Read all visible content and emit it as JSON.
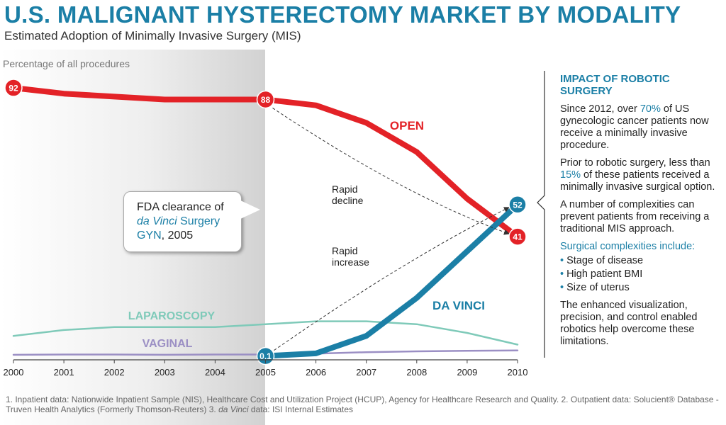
{
  "title": "U.S. MALIGNANT HYSTERECTOMY MARKET BY MODALITY",
  "subtitle": "Estimated Adoption of Minimally Invasive Surgery (MIS)",
  "chart_data": {
    "type": "line",
    "title": "U.S. MALIGNANT HYSTERECTOMY MARKET BY MODALITY",
    "subtitle": "Estimated Adoption of Minimally Invasive Surgery (MIS)",
    "ylabel": "Percentage of all procedures",
    "xlabel": "",
    "x": [
      "2000",
      "2001",
      "2002",
      "2003",
      "2004",
      "2005",
      "2006",
      "2007",
      "2008",
      "2009",
      "2010"
    ],
    "ylim": [
      0,
      95
    ],
    "grid": false,
    "series": [
      {
        "name": "OPEN",
        "color": "#e32227",
        "values": [
          92,
          90,
          89,
          88,
          88,
          88,
          86,
          80,
          70,
          54,
          41
        ]
      },
      {
        "name": "DA VINCI",
        "color": "#1b7fa6",
        "values": [
          null,
          null,
          null,
          null,
          null,
          0.1,
          1,
          7,
          20,
          36,
          52
        ]
      },
      {
        "name": "LAPAROSCOPY",
        "color": "#7fcab9",
        "values": [
          7,
          9,
          10,
          10,
          10,
          11,
          12,
          12,
          11,
          8,
          4
        ]
      },
      {
        "name": "VAGINAL",
        "color": "#9b8fc4",
        "values": [
          0.5,
          0.6,
          0.6,
          0.5,
          0.6,
          0.6,
          0.9,
          1.4,
          1.7,
          1.9,
          2.0
        ]
      }
    ],
    "point_labels": [
      {
        "series": "OPEN",
        "x": "2000",
        "text": "92"
      },
      {
        "series": "OPEN",
        "x": "2005",
        "text": "88"
      },
      {
        "series": "OPEN",
        "x": "2010",
        "text": "41"
      },
      {
        "series": "DA VINCI",
        "x": "2005",
        "text": "0.1"
      },
      {
        "series": "DA VINCI",
        "x": "2010",
        "text": "52"
      }
    ],
    "annotations": {
      "rapid_decline": "Rapid decline",
      "rapid_increase": "Rapid increase"
    }
  },
  "callout": {
    "line1": "FDA clearance of",
    "brand": "da Vinci",
    "line2_rest": " Surgery",
    "line3_blue": "GYN",
    "line3_rest": ", 2005"
  },
  "panel": {
    "heading": "IMPACT OF ROBOTIC SURGERY",
    "p1_a": "Since 2012, over ",
    "p1_pct": "70%",
    "p1_b": " of US gynecologic cancer patients now receive a minimally invasive procedure.",
    "p2_a": "Prior to robotic surgery, less than ",
    "p2_pct": "15%",
    "p2_b": " of these patients received a minimally invasive surgical option.",
    "p3": "A number of complexities can prevent patients from receiving a traditional MIS approach.",
    "complexities_heading": "Surgical complexities include:",
    "complexities": [
      "Stage of disease",
      "High patient BMI",
      "Size of uterus"
    ],
    "p4": "The enhanced visualization, precision, and control enabled robotics help overcome these limitations."
  },
  "footnote": {
    "text1": "1. Inpatient data: Nationwide Inpatient Sample (NIS), Healthcare Cost and Utilization Project (HCUP), Agency for Healthcare Research and Quality. 2. Outpatient data: Solucient® Database - Truven Health Analytics (Formerly Thomson-Reuters) 3. ",
    "brand": "da Vinci",
    "text2": " data: ISI Internal Estimates"
  }
}
